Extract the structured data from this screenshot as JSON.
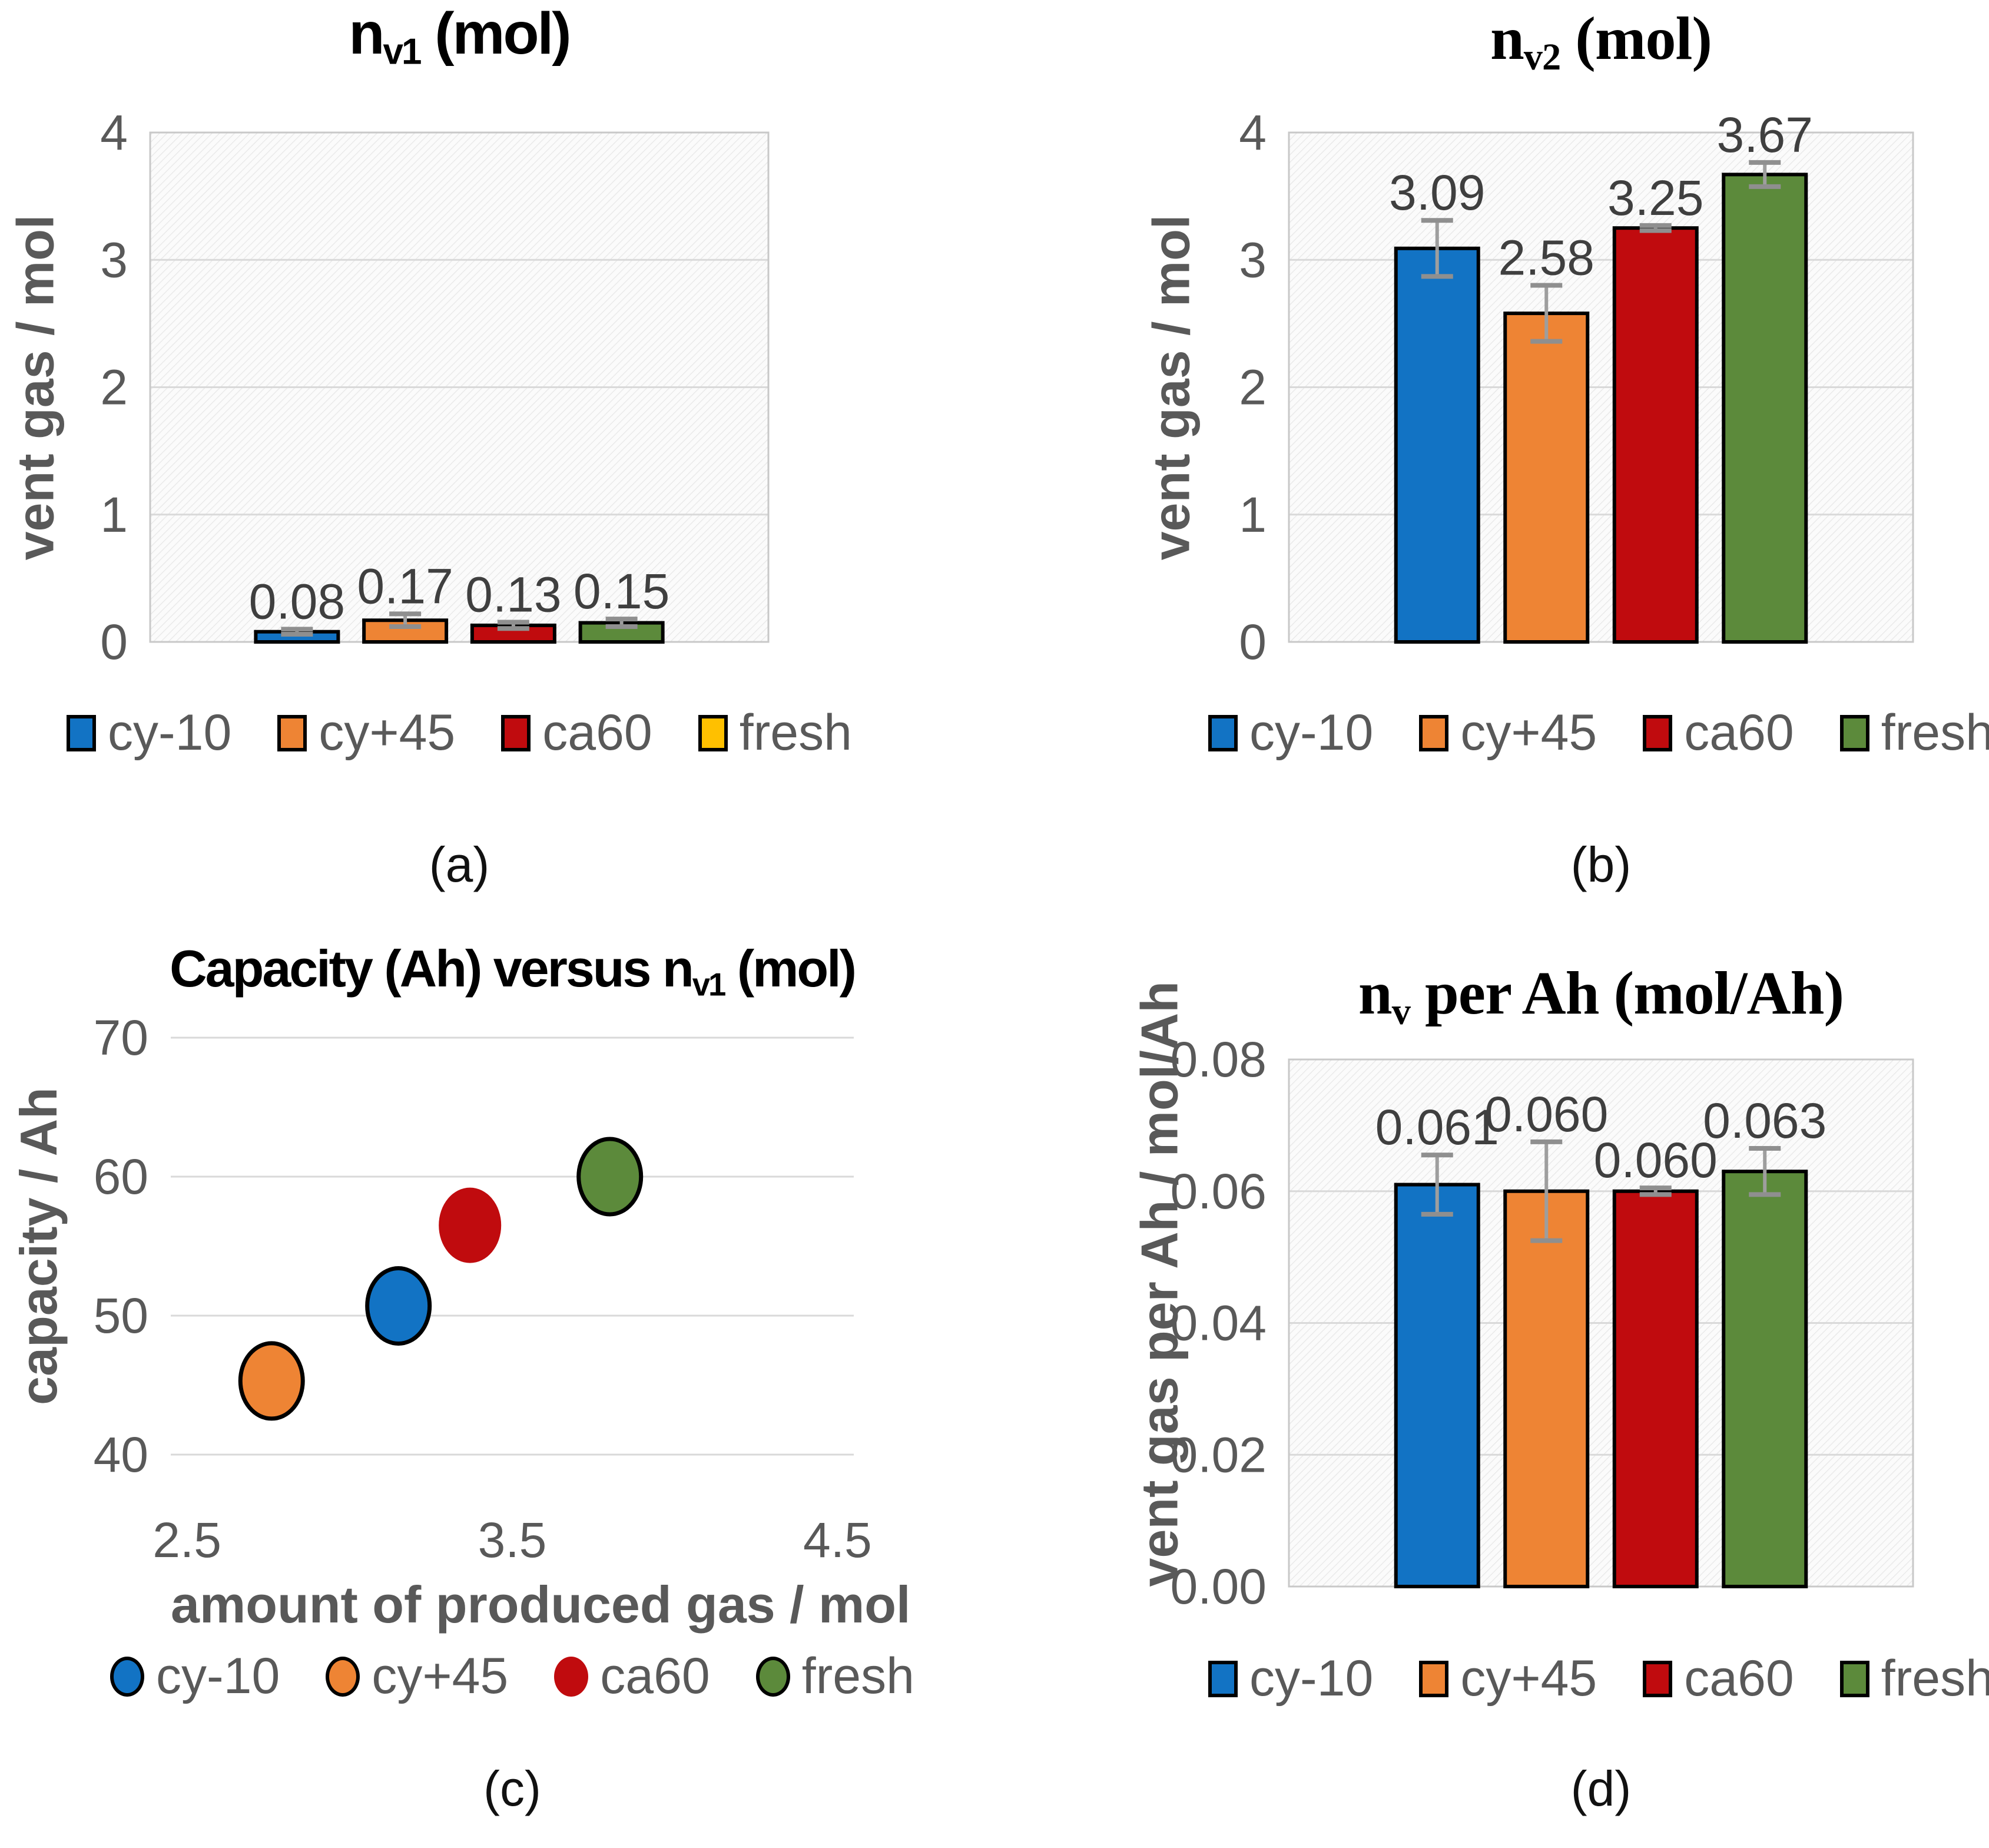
{
  "figure": {
    "background": "#ffffff",
    "text_color_ticks": "#595959",
    "text_color_data_labels": "#3f3f3f",
    "gridline_color": "#d9d9d9",
    "plot_border_color": "#c8c8c8",
    "error_bar_color": "#9e9e9e"
  },
  "chart_data": [
    {
      "id": "a",
      "type": "bar",
      "title_rich": {
        "prefix": "n",
        "sub": "v1",
        "suffix": " (mol)"
      },
      "title_font": "sans",
      "caption": "(a)",
      "ylabel": "vent gas / mol",
      "categories": [
        "cy-10",
        "cy+45",
        "ca60",
        "fresh"
      ],
      "values": [
        0.08,
        0.17,
        0.13,
        0.15
      ],
      "errors": [
        0.02,
        0.05,
        0.025,
        0.03
      ],
      "data_labels": [
        "0.08",
        "0.17",
        "0.13",
        "0.15"
      ],
      "bar_colors": [
        "#1273c4",
        "#ee8434",
        "#c00b0e",
        "#5c8a3b"
      ],
      "legend_colors": [
        "#1273c4",
        "#ee8434",
        "#c00b0e",
        "#ffc000"
      ],
      "legend_marker": "square",
      "ylim": [
        0,
        4
      ],
      "yticks": [
        "0",
        "1",
        "2",
        "3",
        "4"
      ],
      "grid": true,
      "hatch_background": true,
      "legend_position": "bottom"
    },
    {
      "id": "b",
      "type": "bar",
      "title_rich": {
        "prefix": "n",
        "sub": "v2",
        "suffix": " (mol)"
      },
      "title_font": "serif",
      "caption": "(b)",
      "ylabel": "vent gas / mol",
      "categories": [
        "cy-10",
        "cy+45",
        "ca60",
        "fresh"
      ],
      "values": [
        3.09,
        2.58,
        3.25,
        3.67
      ],
      "errors": [
        0.22,
        0.22,
        0.02,
        0.095
      ],
      "data_labels": [
        "3.09",
        "2.58",
        "3.25",
        "3.67"
      ],
      "bar_colors": [
        "#1273c4",
        "#ee8434",
        "#c00b0e",
        "#5c8a3b"
      ],
      "legend_colors": [
        "#1273c4",
        "#ee8434",
        "#c00b0e",
        "#5c8a3b"
      ],
      "legend_marker": "square",
      "ylim": [
        0,
        4
      ],
      "yticks": [
        "0",
        "1",
        "2",
        "3",
        "4"
      ],
      "grid": true,
      "hatch_background": true,
      "legend_position": "bottom"
    },
    {
      "id": "c",
      "type": "scatter",
      "title_rich": {
        "prefix": "Capacity (Ah) versus n",
        "sub": "v1",
        "suffix": " (mol)"
      },
      "title_font": "sans-small",
      "caption": "(c)",
      "ylabel": "capacity / Ah",
      "xlabel": "amount of produced gas / mol",
      "series": [
        {
          "name": "cy-10",
          "x": 3.15,
          "y": 50.7,
          "color": "#1273c4",
          "outline": true
        },
        {
          "name": "cy+45",
          "x": 2.76,
          "y": 45.3,
          "color": "#ee8434",
          "outline": true
        },
        {
          "name": "ca60",
          "x": 3.37,
          "y": 56.5,
          "color": "#c00b0e",
          "outline": false
        },
        {
          "name": "fresh",
          "x": 3.8,
          "y": 60.0,
          "color": "#5c8a3b",
          "outline": true
        }
      ],
      "xlim": [
        2.45,
        4.55
      ],
      "ylim": [
        40,
        70
      ],
      "xticks": [
        {
          "label": "2.5",
          "value": 2.5
        },
        {
          "label": "3.5",
          "value": 3.5
        },
        {
          "label": "4.5",
          "value": 4.5
        }
      ],
      "yticks": [
        "40",
        "50",
        "60",
        "70"
      ],
      "legend_marker": "circle",
      "grid": true,
      "hatch_background": false,
      "legend_position": "bottom"
    },
    {
      "id": "d",
      "type": "bar",
      "title_rich": {
        "prefix": "n",
        "sub": "v",
        "suffix": " per Ah (mol/Ah)"
      },
      "title_font": "serif",
      "caption": "(d)",
      "ylabel": "vent gas per Ah / mol/Ah",
      "categories": [
        "cy-10",
        "cy+45",
        "ca60",
        "fresh"
      ],
      "values": [
        0.061,
        0.06,
        0.06,
        0.063
      ],
      "errors": [
        0.0045,
        0.0075,
        0.0005,
        0.0035
      ],
      "data_labels": [
        "0.061",
        "0.060",
        "0.060",
        "0.063"
      ],
      "bar_colors": [
        "#1273c4",
        "#ee8434",
        "#c00b0e",
        "#5c8a3b"
      ],
      "legend_colors": [
        "#1273c4",
        "#ee8434",
        "#c00b0e",
        "#5c8a3b"
      ],
      "legend_marker": "square",
      "ylim": [
        0,
        0.08
      ],
      "yticks": [
        "0.00",
        "0.02",
        "0.04",
        "0.06",
        "0.08"
      ],
      "grid": true,
      "hatch_background": true,
      "legend_position": "bottom"
    }
  ]
}
